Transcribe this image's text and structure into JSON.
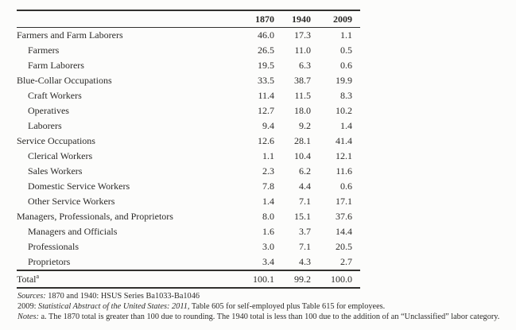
{
  "table": {
    "columns": [
      "1870",
      "1940",
      "2009"
    ],
    "rows": [
      {
        "label": "Farmers and Farm Laborers",
        "indent": 0,
        "values": [
          "46.0",
          "17.3",
          "1.1"
        ]
      },
      {
        "label": "Farmers",
        "indent": 1,
        "values": [
          "26.5",
          "11.0",
          "0.5"
        ]
      },
      {
        "label": "Farm Laborers",
        "indent": 1,
        "values": [
          "19.5",
          "6.3",
          "0.6"
        ]
      },
      {
        "label": "Blue-Collar Occupations",
        "indent": 0,
        "values": [
          "33.5",
          "38.7",
          "19.9"
        ]
      },
      {
        "label": "Craft Workers",
        "indent": 1,
        "values": [
          "11.4",
          "11.5",
          "8.3"
        ]
      },
      {
        "label": "Operatives",
        "indent": 1,
        "values": [
          "12.7",
          "18.0",
          "10.2"
        ]
      },
      {
        "label": "Laborers",
        "indent": 1,
        "values": [
          "9.4",
          "9.2",
          "1.4"
        ]
      },
      {
        "label": "Service Occupations",
        "indent": 0,
        "values": [
          "12.6",
          "28.1",
          "41.4"
        ]
      },
      {
        "label": "Clerical Workers",
        "indent": 1,
        "values": [
          "1.1",
          "10.4",
          "12.1"
        ]
      },
      {
        "label": "Sales Workers",
        "indent": 1,
        "values": [
          "2.3",
          "6.2",
          "11.6"
        ]
      },
      {
        "label": "Domestic Service Workers",
        "indent": 1,
        "values": [
          "7.8",
          "4.4",
          "0.6"
        ]
      },
      {
        "label": "Other Service Workers",
        "indent": 1,
        "values": [
          "1.4",
          "7.1",
          "17.1"
        ]
      },
      {
        "label": "Managers, Professionals, and Proprietors",
        "indent": 0,
        "values": [
          "8.0",
          "15.1",
          "37.6"
        ]
      },
      {
        "label": "Managers and Officials",
        "indent": 1,
        "values": [
          "1.6",
          "3.7",
          "14.4"
        ]
      },
      {
        "label": "Professionals",
        "indent": 1,
        "values": [
          "3.0",
          "7.1",
          "20.5"
        ]
      },
      {
        "label": "Proprietors",
        "indent": 1,
        "values": [
          "3.4",
          "4.3",
          "2.7"
        ]
      }
    ],
    "total_row": {
      "label": "Total",
      "footnote_marker": "a",
      "values": [
        "100.1",
        "99.2",
        "100.0"
      ]
    }
  },
  "footnotes": {
    "sources_label": "Sources:",
    "sources_text": "1870 and 1940: HSUS Series Ba1033-Ba1046",
    "line2_prefix": "2009:",
    "line2_italic": "Statistical Abstract of the United States: 2011,",
    "line2_rest": "Table 605 for self-employed plus Table 615 for employees.",
    "notes_label": "Notes:",
    "notes_text": "a. The 1870 total is greater than 100 due to rounding. The 1940 total is less than 100 due to the addition of an “Unclassified” labor category."
  },
  "colors": {
    "background": "#fcfcfb",
    "text": "#2b2a28",
    "rule": "#31302e"
  }
}
